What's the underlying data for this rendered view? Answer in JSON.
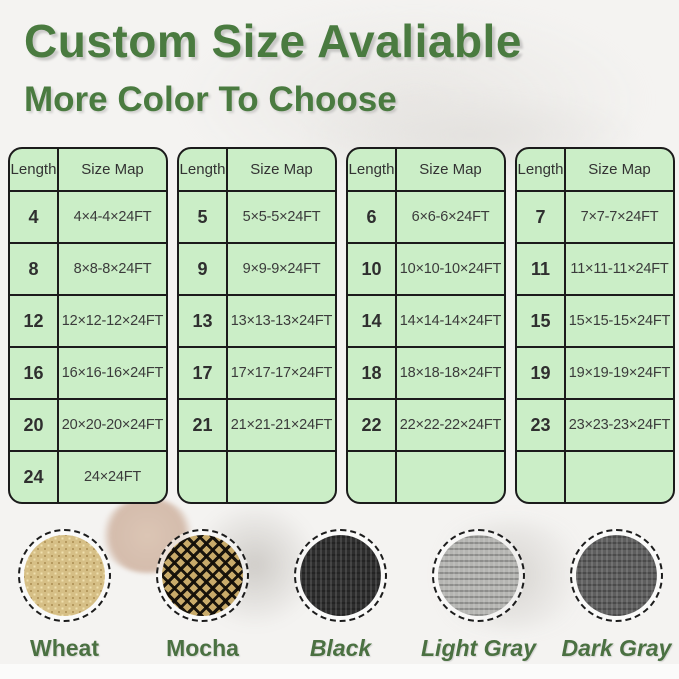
{
  "header": {
    "title": "Custom Size Avaliable",
    "subtitle": "More Color To Choose"
  },
  "colors": {
    "accent_green": "#4a7b40",
    "table_fill": "#cbeec7",
    "table_border": "#1b1b1b",
    "label_green": "#4b7142"
  },
  "size_tables": [
    {
      "headers": [
        "Length",
        "Size Map"
      ],
      "rows": [
        [
          "4",
          "4×4-4×24FT"
        ],
        [
          "8",
          "8×8-8×24FT"
        ],
        [
          "12",
          "12×12-12×24FT"
        ],
        [
          "16",
          "16×16-16×24FT"
        ],
        [
          "20",
          "20×20-20×24FT"
        ],
        [
          "24",
          "24×24FT"
        ]
      ]
    },
    {
      "headers": [
        "Length",
        "Size Map"
      ],
      "rows": [
        [
          "5",
          "5×5-5×24FT"
        ],
        [
          "9",
          "9×9-9×24FT"
        ],
        [
          "13",
          "13×13-13×24FT"
        ],
        [
          "17",
          "17×17-17×24FT"
        ],
        [
          "21",
          "21×21-21×24FT"
        ],
        [
          "",
          ""
        ]
      ]
    },
    {
      "headers": [
        "Length",
        "Size Map"
      ],
      "rows": [
        [
          "6",
          "6×6-6×24FT"
        ],
        [
          "10",
          "10×10-10×24FT"
        ],
        [
          "14",
          "14×14-14×24FT"
        ],
        [
          "18",
          "18×18-18×24FT"
        ],
        [
          "22",
          "22×22-22×24FT"
        ],
        [
          "",
          ""
        ]
      ]
    },
    {
      "headers": [
        "Length",
        "Size Map"
      ],
      "rows": [
        [
          "7",
          "7×7-7×24FT"
        ],
        [
          "11",
          "11×11-11×24FT"
        ],
        [
          "15",
          "15×15-15×24FT"
        ],
        [
          "19",
          "19×19-19×24FT"
        ],
        [
          "23",
          "23×23-23×24FT"
        ],
        [
          "",
          ""
        ]
      ]
    }
  ],
  "swatches": [
    {
      "label": "Wheat",
      "base_color": "#d6bf86"
    },
    {
      "label": "Mocha",
      "base_color": "#c9ab6a"
    },
    {
      "label": "Black",
      "base_color": "#2d2d2d"
    },
    {
      "label": "Light Gray",
      "base_color": "#b5b5b2"
    },
    {
      "label": "Dark Gray",
      "base_color": "#5f5f5f"
    }
  ]
}
